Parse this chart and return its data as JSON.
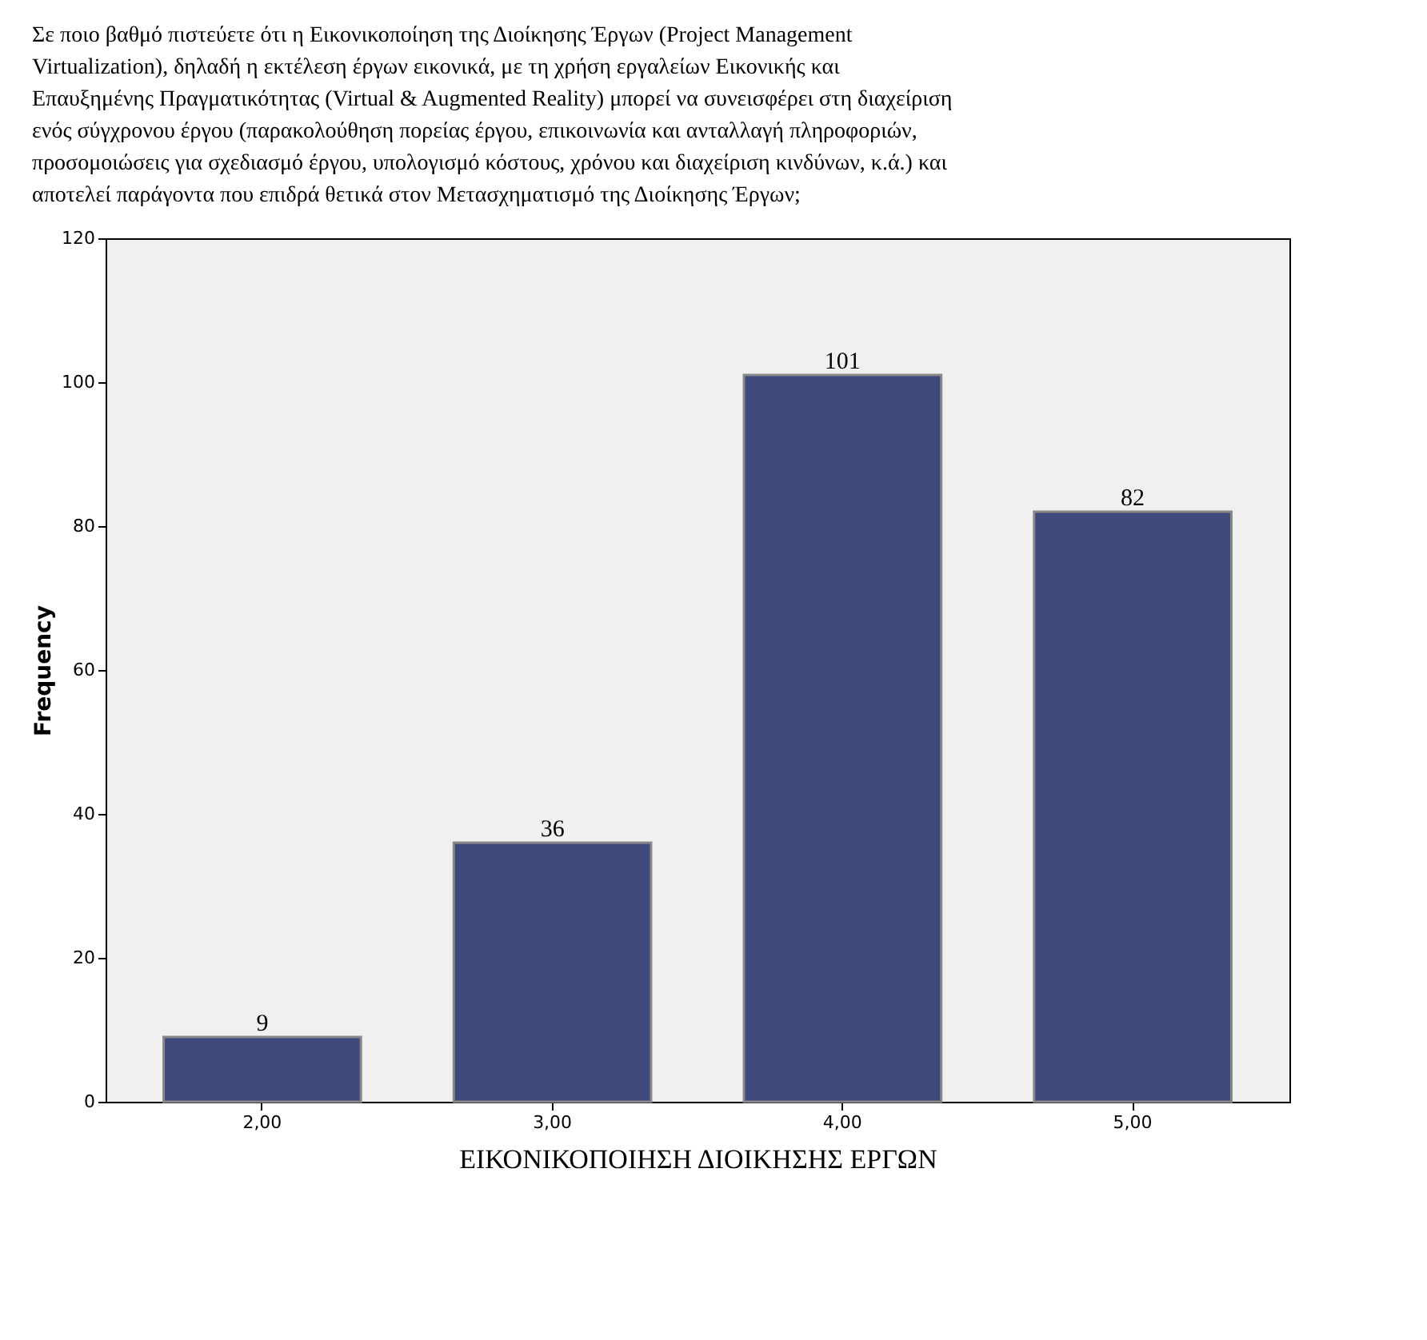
{
  "chart_data": {
    "type": "bar",
    "title": "Σε ποιο βαθμό πιστεύετε ότι η Εικονικοποίηση της Διοίκησης Έργων (Project Management Virtualization), δηλαδή η εκτέλεση έργων εικονικά, με τη χρήση εργαλείων Εικονικής και Επαυξημένης Πραγματικότητας (Virtual & Augmented Reality) μπορεί να συνεισφέρει στη διαχείριση ενός σύγχρονου έργου (παρακολούθηση πορείας έργου, επικοινωνία και ανταλλαγή πληροφοριών, προσομοιώσεις για σχεδιασμό έργου, υπολογισμό κόστους, χρόνου και διαχείριση κινδύνων, κ.ά.) και αποτελεί παράγοντα που επιδρά θετικά στον Μετασχηματισμό της Διοίκησης Έργων;",
    "xlabel": "ΕΙΚΟΝΙΚΟΠΟΙΗΣΗ ΔΙΟΙΚΗΣΗΣ ΕΡΓΩΝ",
    "ylabel": "Frequency",
    "categories": [
      "2,00",
      "3,00",
      "4,00",
      "5,00"
    ],
    "values": [
      9,
      36,
      101,
      82
    ],
    "color": "#3e4a7c",
    "ylim": [
      0,
      120
    ],
    "yticks": [
      0,
      20,
      40,
      60,
      80,
      100,
      120
    ],
    "data_labels": true,
    "grid": false
  }
}
